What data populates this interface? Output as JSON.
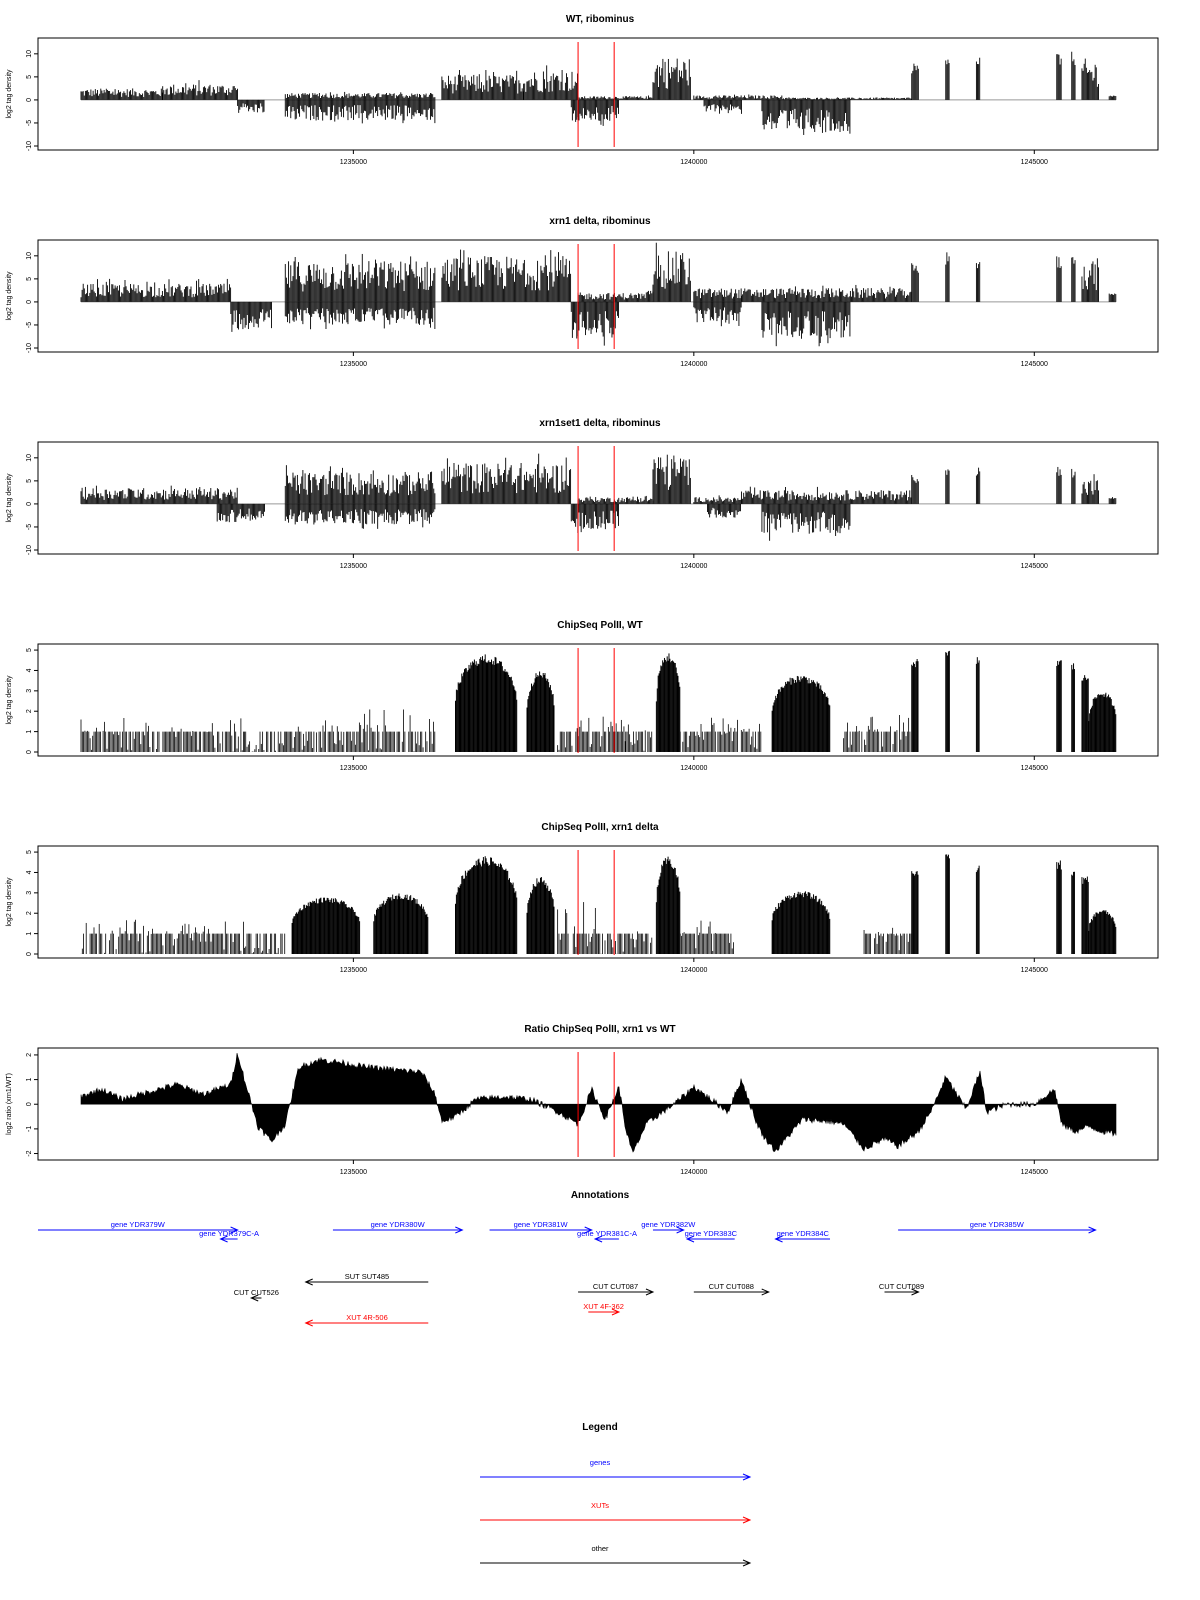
{
  "figure": {
    "annotations_title": "Annotations",
    "legend_title": "Legend"
  },
  "chart_data": [
    {
      "type": "bar",
      "title": "WT, ribominus",
      "ylabel": "log2 tag density",
      "xlim": [
        1231000,
        1246200
      ],
      "ylim": [
        -10,
        13
      ],
      "yticks": [
        -10,
        -5,
        0,
        5,
        10
      ],
      "xticks": [
        1235000,
        1240000,
        1245000
      ],
      "vlines": [
        1238300,
        1238830
      ],
      "forward_regions": [
        {
          "range": [
            1231000,
            1232200
          ],
          "height": 2.5
        },
        {
          "range": [
            1232200,
            1233300
          ],
          "height": 3.5
        },
        {
          "range": [
            1234000,
            1236200
          ],
          "height": 1.5
        },
        {
          "range": [
            1236300,
            1237500
          ],
          "height": 5.5
        },
        {
          "range": [
            1237500,
            1238300
          ],
          "height": 6.5
        },
        {
          "range": [
            1238300,
            1239400
          ],
          "height": 0.8
        },
        {
          "range": [
            1239400,
            1239950
          ],
          "height": 9.5
        },
        {
          "range": [
            1240000,
            1241300
          ],
          "height": 1.0
        },
        {
          "range": [
            1241300,
            1243200
          ],
          "height": 0.5
        },
        {
          "range": [
            1243200,
            1243300
          ],
          "height": 8.0
        },
        {
          "range": [
            1243700,
            1243760
          ],
          "height": 11.0
        },
        {
          "range": [
            1244150,
            1244200
          ],
          "height": 10.0
        },
        {
          "range": [
            1245330,
            1245400
          ],
          "height": 10.5
        },
        {
          "range": [
            1245550,
            1245600
          ],
          "height": 10.5
        },
        {
          "range": [
            1245700,
            1245950
          ],
          "height": 9.0
        },
        {
          "range": [
            1246100,
            1246200
          ],
          "height": 1.0
        }
      ],
      "reverse_regions": [
        {
          "range": [
            1233300,
            1233700
          ],
          "height": 3.0
        },
        {
          "range": [
            1234000,
            1236200
          ],
          "height": 4.5
        },
        {
          "range": [
            1238200,
            1238900
          ],
          "height": 5.0
        },
        {
          "range": [
            1240150,
            1240700
          ],
          "height": 2.5
        },
        {
          "range": [
            1241000,
            1242300
          ],
          "height": 7.0
        }
      ]
    },
    {
      "type": "bar",
      "title": "xrn1 delta, ribominus",
      "ylabel": "log2 tag density",
      "xlim": [
        1231000,
        1246200
      ],
      "ylim": [
        -10,
        13
      ],
      "yticks": [
        -10,
        -5,
        0,
        5,
        10
      ],
      "xticks": [
        1235000,
        1240000,
        1245000
      ],
      "vlines": [
        1238300,
        1238830
      ],
      "forward_regions": [
        {
          "range": [
            1231000,
            1233200
          ],
          "height": 4.0
        },
        {
          "range": [
            1234000,
            1236200
          ],
          "height": 9.0
        },
        {
          "range": [
            1236300,
            1238200
          ],
          "height": 10.0
        },
        {
          "range": [
            1238300,
            1239400
          ],
          "height": 2.0
        },
        {
          "range": [
            1239400,
            1239950
          ],
          "height": 11.0
        },
        {
          "range": [
            1240000,
            1240700
          ],
          "height": 3.0
        },
        {
          "range": [
            1240700,
            1243200
          ],
          "height": 3.0
        },
        {
          "range": [
            1243200,
            1243300
          ],
          "height": 8.5
        },
        {
          "range": [
            1243700,
            1243760
          ],
          "height": 11.0
        },
        {
          "range": [
            1244150,
            1244200
          ],
          "height": 10.0
        },
        {
          "range": [
            1245330,
            1245400
          ],
          "height": 10.0
        },
        {
          "range": [
            1245550,
            1245600
          ],
          "height": 10.0
        },
        {
          "range": [
            1245700,
            1245950
          ],
          "height": 9.5
        },
        {
          "range": [
            1246100,
            1246200
          ],
          "height": 2.0
        }
      ],
      "reverse_regions": [
        {
          "range": [
            1233200,
            1233800
          ],
          "height": 6.0
        },
        {
          "range": [
            1234000,
            1236200
          ],
          "height": 5.0
        },
        {
          "range": [
            1238200,
            1238900
          ],
          "height": 8.0
        },
        {
          "range": [
            1240000,
            1240700
          ],
          "height": 4.5
        },
        {
          "range": [
            1241000,
            1242300
          ],
          "height": 8.0
        }
      ]
    },
    {
      "type": "bar",
      "title": "xrn1set1 delta, ribominus",
      "ylabel": "log2 tag density",
      "xlim": [
        1231000,
        1246200
      ],
      "ylim": [
        -10,
        13
      ],
      "yticks": [
        -10,
        -5,
        0,
        5,
        10
      ],
      "xticks": [
        1235000,
        1240000,
        1245000
      ],
      "vlines": [
        1238300,
        1238830
      ],
      "forward_regions": [
        {
          "range": [
            1231000,
            1233300
          ],
          "height": 3.5
        },
        {
          "range": [
            1234000,
            1236200
          ],
          "height": 7.0
        },
        {
          "range": [
            1236300,
            1238200
          ],
          "height": 9.0
        },
        {
          "range": [
            1238300,
            1239400
          ],
          "height": 1.5
        },
        {
          "range": [
            1239400,
            1239950
          ],
          "height": 11.0
        },
        {
          "range": [
            1240000,
            1240700
          ],
          "height": 1.5
        },
        {
          "range": [
            1240700,
            1243200
          ],
          "height": 3.0
        },
        {
          "range": [
            1243200,
            1243300
          ],
          "height": 6.5
        },
        {
          "range": [
            1243700,
            1243760
          ],
          "height": 9.0
        },
        {
          "range": [
            1244150,
            1244200
          ],
          "height": 8.5
        },
        {
          "range": [
            1245330,
            1245400
          ],
          "height": 8.5
        },
        {
          "range": [
            1245550,
            1245600
          ],
          "height": 8.0
        },
        {
          "range": [
            1245700,
            1245950
          ],
          "height": 5.5
        },
        {
          "range": [
            1246100,
            1246200
          ],
          "height": 1.5
        }
      ],
      "reverse_regions": [
        {
          "range": [
            1233000,
            1233700
          ],
          "height": 4.0
        },
        {
          "range": [
            1234000,
            1236200
          ],
          "height": 4.5
        },
        {
          "range": [
            1238200,
            1238900
          ],
          "height": 5.5
        },
        {
          "range": [
            1240200,
            1240700
          ],
          "height": 3.0
        },
        {
          "range": [
            1241000,
            1242300
          ],
          "height": 6.5
        }
      ]
    },
    {
      "type": "bar",
      "title": "ChipSeq PolII, WT",
      "ylabel": "log2 tag density",
      "xlim": [
        1231000,
        1246200
      ],
      "ylim": [
        0,
        5.2
      ],
      "yticks": [
        0,
        1,
        2,
        3,
        4,
        5
      ],
      "xticks": [
        1235000,
        1240000,
        1245000
      ],
      "vlines": [
        1238300,
        1238830
      ],
      "regions": [
        {
          "range": [
            1231000,
            1233400
          ],
          "height": 1.2,
          "dense": false
        },
        {
          "range": [
            1233400,
            1234000
          ],
          "height": 0.4,
          "dense": false
        },
        {
          "range": [
            1234000,
            1236200
          ],
          "height": 1.5,
          "dense": false
        },
        {
          "range": [
            1236500,
            1237400
          ],
          "height": 4.8,
          "dense": true
        },
        {
          "range": [
            1237550,
            1237950
          ],
          "height": 4.0,
          "dense": true
        },
        {
          "range": [
            1238000,
            1239000
          ],
          "height": 1.3,
          "dense": false
        },
        {
          "range": [
            1239000,
            1239400
          ],
          "height": 1.0,
          "dense": false
        },
        {
          "range": [
            1239450,
            1239800
          ],
          "height": 4.9,
          "dense": true
        },
        {
          "range": [
            1239800,
            1241000
          ],
          "height": 1.2,
          "dense": false
        },
        {
          "range": [
            1241150,
            1242000
          ],
          "height": 3.8,
          "dense": true
        },
        {
          "range": [
            1242200,
            1243200
          ],
          "height": 1.3,
          "dense": false
        },
        {
          "range": [
            1243200,
            1243300
          ],
          "height": 4.6,
          "dense": true
        },
        {
          "range": [
            1243700,
            1243760
          ],
          "height": 5.0,
          "dense": true
        },
        {
          "range": [
            1244150,
            1244200
          ],
          "height": 4.7,
          "dense": true
        },
        {
          "range": [
            1245330,
            1245400
          ],
          "height": 4.6,
          "dense": true
        },
        {
          "range": [
            1245550,
            1245600
          ],
          "height": 4.4,
          "dense": true
        },
        {
          "range": [
            1245700,
            1245800
          ],
          "height": 3.8,
          "dense": true
        },
        {
          "range": [
            1245800,
            1246200
          ],
          "height": 3.0,
          "dense": true
        }
      ]
    },
    {
      "type": "bar",
      "title": "ChipSeq PolII, xrn1 delta",
      "ylabel": "log2 tag density",
      "xlim": [
        1231000,
        1246200
      ],
      "ylim": [
        0,
        5.2
      ],
      "yticks": [
        0,
        1,
        2,
        3,
        4,
        5
      ],
      "xticks": [
        1235000,
        1240000,
        1245000
      ],
      "vlines": [
        1238300,
        1238830
      ],
      "regions": [
        {
          "range": [
            1231000,
            1233400
          ],
          "height": 1.2,
          "dense": false
        },
        {
          "range": [
            1233400,
            1234000
          ],
          "height": 0.3,
          "dense": false
        },
        {
          "range": [
            1234100,
            1235100
          ],
          "height": 2.8,
          "dense": true
        },
        {
          "range": [
            1235300,
            1236100
          ],
          "height": 3.0,
          "dense": true
        },
        {
          "range": [
            1236500,
            1237400
          ],
          "height": 4.8,
          "dense": true
        },
        {
          "range": [
            1237550,
            1237950
          ],
          "height": 3.8,
          "dense": true
        },
        {
          "range": [
            1238000,
            1238600
          ],
          "height": 2.0,
          "dense": false
        },
        {
          "range": [
            1238600,
            1239400
          ],
          "height": 0.8,
          "dense": false
        },
        {
          "range": [
            1239450,
            1239800
          ],
          "height": 4.8,
          "dense": true
        },
        {
          "range": [
            1239800,
            1240600
          ],
          "height": 1.2,
          "dense": false
        },
        {
          "range": [
            1241150,
            1242000
          ],
          "height": 3.1,
          "dense": true
        },
        {
          "range": [
            1242500,
            1243200
          ],
          "height": 1.0,
          "dense": false
        },
        {
          "range": [
            1243200,
            1243300
          ],
          "height": 4.2,
          "dense": true
        },
        {
          "range": [
            1243700,
            1243760
          ],
          "height": 4.9,
          "dense": true
        },
        {
          "range": [
            1244150,
            1244200
          ],
          "height": 4.4,
          "dense": true
        },
        {
          "range": [
            1245330,
            1245400
          ],
          "height": 4.6,
          "dense": true
        },
        {
          "range": [
            1245550,
            1245600
          ],
          "height": 4.2,
          "dense": true
        },
        {
          "range": [
            1245700,
            1245800
          ],
          "height": 3.8,
          "dense": true
        },
        {
          "range": [
            1245800,
            1246200
          ],
          "height": 2.2,
          "dense": true
        }
      ]
    },
    {
      "type": "area",
      "title": "Ratio ChipSeq PolII, xrn1 vs WT",
      "ylabel": "log2 ratio (xrn1/WT)",
      "xlim": [
        1231000,
        1246200
      ],
      "ylim": [
        -2.1,
        2.2
      ],
      "yticks": [
        -2,
        -1,
        0,
        1,
        2
      ],
      "xticks": [
        1235000,
        1240000,
        1245000
      ],
      "vlines": [
        1238300,
        1238830
      ],
      "x": [
        1231000,
        1231300,
        1231600,
        1232000,
        1232400,
        1232800,
        1233200,
        1233300,
        1233400,
        1233600,
        1233800,
        1234000,
        1234200,
        1234500,
        1234800,
        1235200,
        1235600,
        1236000,
        1236200,
        1236300,
        1236500,
        1236800,
        1237200,
        1237600,
        1238000,
        1238300,
        1238500,
        1238700,
        1238900,
        1239000,
        1239100,
        1239300,
        1239500,
        1239800,
        1240000,
        1240200,
        1240500,
        1240700,
        1240900,
        1241000,
        1241200,
        1241600,
        1242000,
        1242200,
        1242500,
        1242800,
        1243000,
        1243300,
        1243500,
        1243700,
        1244000,
        1244200,
        1244300,
        1244600,
        1245000,
        1245300,
        1245400,
        1245600,
        1245800,
        1246000,
        1246200
      ],
      "y": [
        0.3,
        0.6,
        0.2,
        0.5,
        0.8,
        0.4,
        0.8,
        2.1,
        1.0,
        -0.9,
        -1.5,
        -0.8,
        1.5,
        1.8,
        1.7,
        1.5,
        1.4,
        1.3,
        0.4,
        -0.7,
        -0.5,
        0.2,
        0.3,
        0.2,
        -0.3,
        -0.8,
        0.6,
        -0.6,
        0.7,
        -1.0,
        -2.0,
        -0.8,
        -0.4,
        0.2,
        0.7,
        0.3,
        -0.3,
        1.0,
        -0.6,
        -1.2,
        -1.9,
        -0.6,
        -0.7,
        -0.8,
        -1.8,
        -1.4,
        -1.7,
        -1.1,
        -0.2,
        1.1,
        -0.2,
        1.3,
        -0.3,
        0.0,
        0.0,
        0.6,
        -0.8,
        -1.1,
        -0.9,
        -1.1,
        -1.2
      ]
    }
  ],
  "annotations": [
    {
      "label": "gene YDR379W",
      "category": "genes",
      "x_from": 1231000,
      "x_to": 1233300,
      "row": 0
    },
    {
      "label": "gene YDR379C-A",
      "category": "genes",
      "x_from": 1233300,
      "x_to": 1233050,
      "row": 1
    },
    {
      "label": "gene YDR380W",
      "category": "genes",
      "x_from": 1234700,
      "x_to": 1236600,
      "row": 0
    },
    {
      "label": "gene YDR381W",
      "category": "genes",
      "x_from": 1237000,
      "x_to": 1238500,
      "row": 0
    },
    {
      "label": "gene YDR381C-A",
      "category": "genes",
      "x_from": 1238900,
      "x_to": 1238550,
      "row": 1
    },
    {
      "label": "gene YDR382W",
      "category": "genes",
      "x_from": 1239400,
      "x_to": 1239850,
      "row": 0
    },
    {
      "label": "gene YDR383C",
      "category": "genes",
      "x_from": 1240600,
      "x_to": 1239900,
      "row": 1
    },
    {
      "label": "gene YDR384C",
      "category": "genes",
      "x_from": 1242000,
      "x_to": 1241200,
      "row": 1
    },
    {
      "label": "gene YDR385W",
      "category": "genes",
      "x_from": 1243000,
      "x_to": 1245900,
      "row": 0
    },
    {
      "label": "SUT SUT485",
      "category": "other",
      "x_from": 1236100,
      "x_to": 1234300,
      "row": 2
    },
    {
      "label": "CUT CUT526",
      "category": "other",
      "x_from": 1233650,
      "x_to": 1233500,
      "row": 3
    },
    {
      "label": "CUT CUT087",
      "category": "other",
      "x_from": 1238300,
      "x_to": 1239400,
      "row": 2.5
    },
    {
      "label": "CUT CUT088",
      "category": "other",
      "x_from": 1240000,
      "x_to": 1241100,
      "row": 2.5
    },
    {
      "label": "CUT CUT089",
      "category": "other",
      "x_from": 1242800,
      "x_to": 1243300,
      "row": 2.5
    },
    {
      "label": "XUT 4R-506",
      "category": "XUTs",
      "x_from": 1236100,
      "x_to": 1234300,
      "row": 4
    },
    {
      "label": "XUT 4F-362",
      "category": "XUTs",
      "x_from": 1238450,
      "x_to": 1238900,
      "row": 3.5
    }
  ],
  "legend": [
    {
      "label": "genes",
      "color": "#0000ff"
    },
    {
      "label": "XUTs",
      "color": "#ff0000"
    },
    {
      "label": "other",
      "color": "#000000"
    }
  ],
  "colors": {
    "genes": "#0000ff",
    "XUTs": "#ff0000",
    "other": "#000000",
    "vline": "#ff0000",
    "data": "#000000"
  }
}
